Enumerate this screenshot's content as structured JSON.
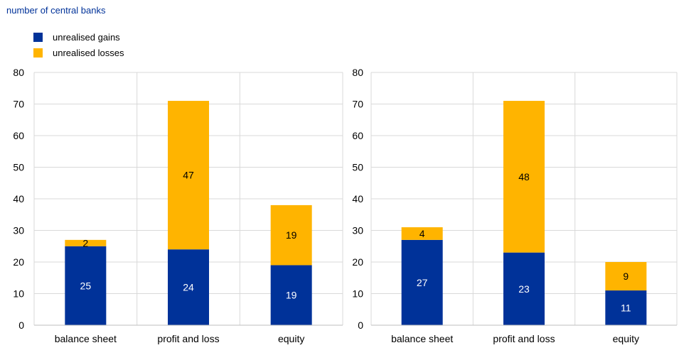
{
  "unit_label": "number of central banks",
  "colors": {
    "gains": "#003299",
    "losses": "#FFB400",
    "grid": "#d9d9d9"
  },
  "legend": [
    {
      "label": "unrealised gains",
      "color": "#003299"
    },
    {
      "label": "unrealised losses",
      "color": "#FFB400"
    }
  ],
  "chart_data": [
    {
      "type": "bar",
      "stacked": true,
      "categories": [
        "balance sheet",
        "profit and loss",
        "equity"
      ],
      "series": [
        {
          "name": "unrealised gains",
          "values": [
            25,
            24,
            19
          ]
        },
        {
          "name": "unrealised losses",
          "values": [
            2,
            47,
            19
          ]
        }
      ],
      "ylim": [
        0,
        80
      ],
      "yticks": [
        0,
        10,
        20,
        30,
        40,
        50,
        60,
        70,
        80
      ],
      "grid": true
    },
    {
      "type": "bar",
      "stacked": true,
      "categories": [
        "balance sheet",
        "profit and loss",
        "equity"
      ],
      "series": [
        {
          "name": "unrealised gains",
          "values": [
            27,
            23,
            11
          ]
        },
        {
          "name": "unrealised losses",
          "values": [
            4,
            48,
            9
          ]
        }
      ],
      "ylim": [
        0,
        80
      ],
      "yticks": [
        0,
        10,
        20,
        30,
        40,
        50,
        60,
        70,
        80
      ],
      "grid": true
    }
  ]
}
